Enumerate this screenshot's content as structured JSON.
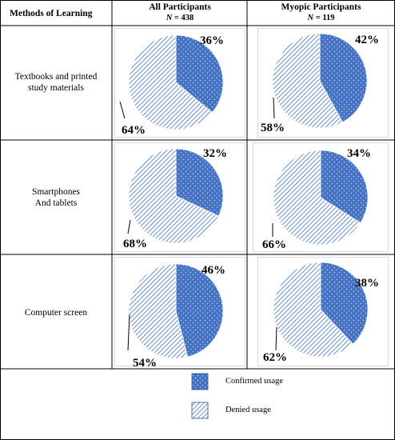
{
  "header": {
    "col1": "Methods of Learning",
    "col2_title": "All Participants",
    "col2_n_label": "N",
    "col2_n_value": " = 438",
    "col3_title": "Myopic Participants",
    "col3_n_label": "N",
    "col3_n_value": " = 119"
  },
  "rows": [
    {
      "line1": "Textbooks and printed",
      "line2": "study materials"
    },
    {
      "line1": "Smartphones",
      "line2": "And tablets"
    },
    {
      "line1": "Computer screen",
      "line2": ""
    }
  ],
  "legend": {
    "confirmed": "Confirmed usage",
    "denied": "Denied usage"
  },
  "colors": {
    "confirmed_fill": "#4472c4",
    "denied_stroke": "#4472c4",
    "border": "#000000"
  },
  "chart_data": [
    {
      "type": "pie",
      "row": "Textbooks and printed study materials",
      "group": "All Participants",
      "categories": [
        "Confirmed usage",
        "Denied usage"
      ],
      "values": [
        36,
        64
      ],
      "labels": [
        "36%",
        "64%"
      ]
    },
    {
      "type": "pie",
      "row": "Textbooks and printed study materials",
      "group": "Myopic Participants",
      "categories": [
        "Confirmed usage",
        "Denied usage"
      ],
      "values": [
        42,
        58
      ],
      "labels": [
        "42%",
        "58%"
      ]
    },
    {
      "type": "pie",
      "row": "Smartphones And tablets",
      "group": "All Participants",
      "categories": [
        "Confirmed usage",
        "Denied usage"
      ],
      "values": [
        32,
        68
      ],
      "labels": [
        "32%",
        "68%"
      ]
    },
    {
      "type": "pie",
      "row": "Smartphones And tablets",
      "group": "Myopic Participants",
      "categories": [
        "Confirmed usage",
        "Denied usage"
      ],
      "values": [
        34,
        66
      ],
      "labels": [
        "34%",
        "66%"
      ]
    },
    {
      "type": "pie",
      "row": "Computer screen",
      "group": "All Participants",
      "categories": [
        "Confirmed usage",
        "Denied usage"
      ],
      "values": [
        46,
        54
      ],
      "labels": [
        "46%",
        "54%"
      ]
    },
    {
      "type": "pie",
      "row": "Computer screen",
      "group": "Myopic Participants",
      "categories": [
        "Confirmed usage",
        "Denied usage"
      ],
      "values": [
        38,
        62
      ],
      "labels": [
        "38%",
        "62%"
      ]
    }
  ]
}
